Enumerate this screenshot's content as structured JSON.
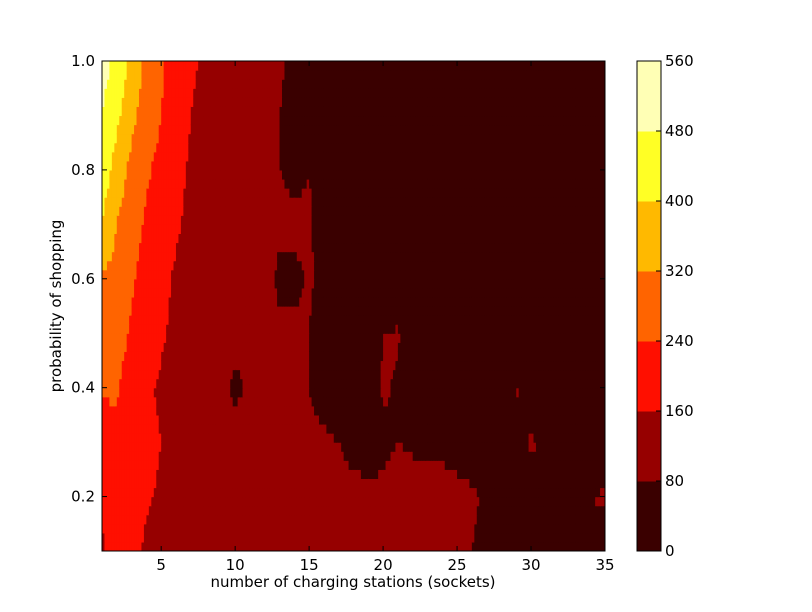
{
  "chart_data": {
    "type": "heatmap",
    "subtype": "filled-contour",
    "title": "",
    "xlabel": "number of charging stations (sockets)",
    "ylabel": "probability of shopping",
    "xlim": [
      1,
      35
    ],
    "ylim": [
      0.1,
      1.0
    ],
    "x_ticks": [
      5,
      10,
      15,
      20,
      25,
      30,
      35
    ],
    "y_ticks": [
      0.2,
      0.4,
      0.6,
      0.8,
      1.0
    ],
    "y_tick_labels": [
      "0.2",
      "0.4",
      "0.6",
      "0.8",
      "1.0"
    ],
    "grid": false,
    "colorbar": {
      "levels": [
        0,
        80,
        160,
        240,
        320,
        400,
        480,
        560
      ],
      "colors": [
        "#3a0000",
        "#960000",
        "#ff0f00",
        "#ff6400",
        "#ffb900",
        "#ffff25",
        "#ffffb5"
      ]
    },
    "x": [
      1,
      2,
      3,
      4,
      5,
      6,
      7,
      8,
      9,
      10,
      11,
      12,
      13,
      14,
      15,
      16,
      17,
      18,
      19,
      20,
      21,
      22,
      23,
      24,
      25,
      26,
      27,
      28,
      29,
      30,
      31,
      32,
      33,
      34,
      35
    ],
    "y": [
      0.1,
      0.2,
      0.3,
      0.4,
      0.5,
      0.6,
      0.7,
      0.8,
      0.9,
      1.0
    ],
    "z": [
      [
        150,
        200,
        210,
        140,
        130,
        120,
        110,
        100,
        100,
        90,
        95,
        100,
        95,
        95,
        95,
        90,
        85,
        85,
        85,
        85,
        90,
        95,
        90,
        85,
        85,
        80,
        70,
        60,
        55,
        55,
        60,
        65,
        60,
        60,
        60
      ],
      [
        170,
        210,
        180,
        170,
        150,
        130,
        120,
        110,
        100,
        95,
        100,
        100,
        95,
        95,
        95,
        95,
        95,
        95,
        90,
        90,
        95,
        95,
        95,
        95,
        90,
        85,
        75,
        70,
        60,
        65,
        70,
        80,
        80,
        80,
        85
      ],
      [
        200,
        220,
        200,
        180,
        160,
        130,
        120,
        110,
        100,
        100,
        95,
        100,
        95,
        95,
        95,
        90,
        80,
        65,
        60,
        70,
        80,
        75,
        70,
        70,
        65,
        60,
        55,
        50,
        50,
        85,
        70,
        50,
        50,
        50,
        45
      ],
      [
        250,
        250,
        200,
        170,
        150,
        130,
        120,
        110,
        100,
        70,
        90,
        95,
        95,
        90,
        80,
        55,
        40,
        30,
        40,
        85,
        75,
        45,
        45,
        70,
        40,
        30,
        30,
        50,
        85,
        60,
        30,
        30,
        30,
        30,
        30
      ],
      [
        280,
        270,
        230,
        200,
        170,
        140,
        125,
        115,
        110,
        95,
        85,
        95,
        90,
        90,
        80,
        50,
        40,
        30,
        60,
        80,
        85,
        40,
        30,
        30,
        30,
        30,
        30,
        30,
        30,
        30,
        30,
        30,
        30,
        30,
        30
      ],
      [
        310,
        290,
        250,
        210,
        180,
        150,
        130,
        120,
        110,
        80,
        90,
        95,
        70,
        70,
        85,
        70,
        40,
        30,
        70,
        40,
        30,
        30,
        30,
        30,
        30,
        30,
        30,
        30,
        30,
        30,
        30,
        30,
        30,
        30,
        30
      ],
      [
        400,
        320,
        270,
        230,
        200,
        170,
        140,
        125,
        115,
        105,
        100,
        100,
        90,
        90,
        85,
        60,
        40,
        30,
        30,
        30,
        30,
        30,
        30,
        30,
        30,
        30,
        30,
        30,
        30,
        30,
        30,
        30,
        30,
        30,
        30
      ],
      [
        450,
        360,
        300,
        250,
        220,
        180,
        150,
        130,
        120,
        110,
        105,
        100,
        80,
        70,
        80,
        60,
        40,
        30,
        30,
        30,
        30,
        30,
        30,
        30,
        30,
        30,
        30,
        30,
        30,
        30,
        30,
        30,
        30,
        30,
        30
      ],
      [
        480,
        420,
        340,
        280,
        240,
        200,
        160,
        140,
        120,
        110,
        110,
        100,
        80,
        60,
        50,
        40,
        30,
        30,
        30,
        30,
        30,
        30,
        30,
        30,
        30,
        30,
        30,
        30,
        30,
        30,
        30,
        30,
        30,
        30,
        30
      ],
      [
        510,
        460,
        380,
        300,
        250,
        200,
        170,
        150,
        130,
        120,
        110,
        100,
        90,
        60,
        40,
        30,
        30,
        30,
        30,
        30,
        30,
        30,
        30,
        30,
        30,
        30,
        30,
        30,
        30,
        30,
        30,
        30,
        30,
        30,
        30
      ]
    ]
  }
}
